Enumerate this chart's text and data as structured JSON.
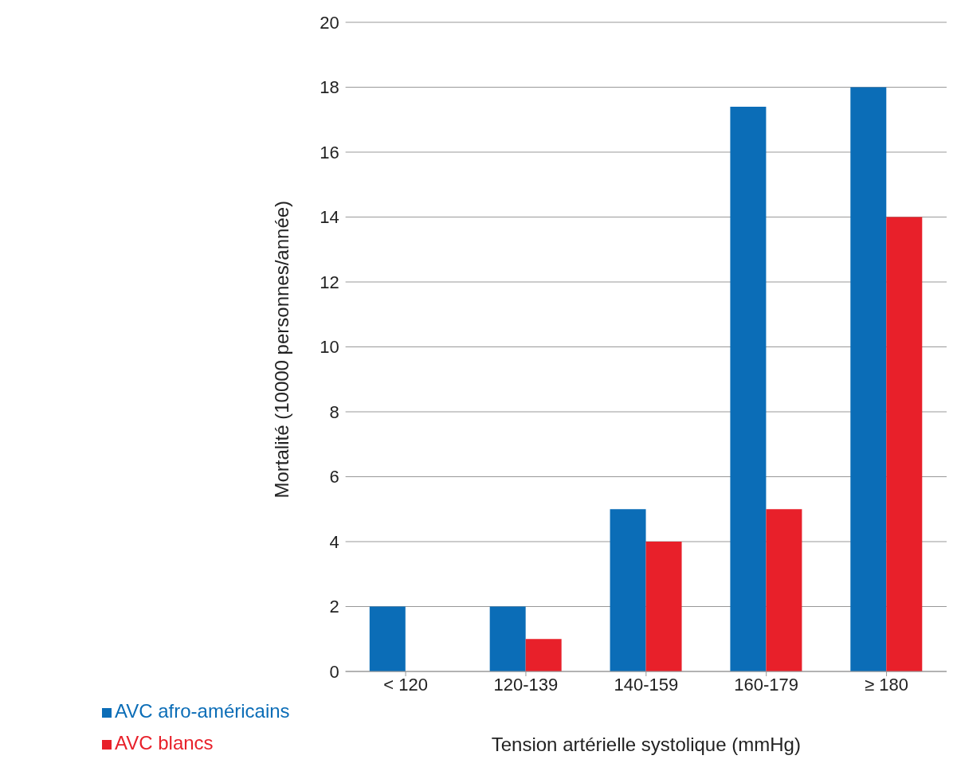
{
  "chart_data": {
    "type": "bar",
    "xlabel": "Tension artérielle systolique (mmHg)",
    "ylabel": "Mortalité (10000 personnes/année)",
    "categories": [
      "< 120",
      "120-139",
      "140-159",
      "160-179",
      "≥ 180"
    ],
    "series": [
      {
        "name": "AVC afro-américains",
        "color": "#0b6db7",
        "values": [
          2,
          2,
          5,
          17.4,
          18
        ]
      },
      {
        "name": "AVC blancs",
        "color": "#e8202a",
        "values": [
          null,
          1,
          4,
          5,
          14
        ]
      }
    ],
    "ylim": [
      0,
      20
    ],
    "yticks": [
      0,
      2,
      4,
      6,
      8,
      10,
      12,
      14,
      16,
      18,
      20
    ],
    "grid": "y",
    "legend": "bottom left"
  }
}
